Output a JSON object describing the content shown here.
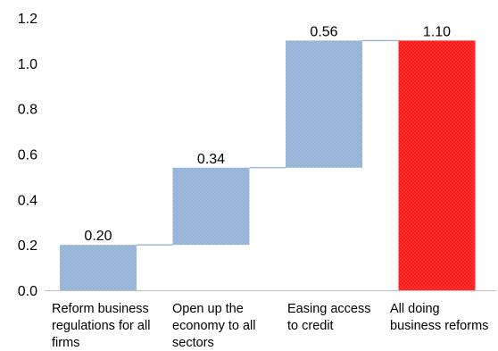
{
  "chart_data": {
    "type": "bar",
    "subtype": "waterfall",
    "title": "",
    "xlabel": "",
    "ylabel": "",
    "ylim": [
      0,
      1.2
    ],
    "yticks": [
      "0.0",
      "0.2",
      "0.4",
      "0.6",
      "0.8",
      "1.0",
      "1.2"
    ],
    "grid": false,
    "legend": "none",
    "categories": [
      [
        "Reform business",
        "regulations for all",
        "firms"
      ],
      [
        "Open up the",
        "economy to all",
        "sectors"
      ],
      [
        "Easing access",
        "to credit"
      ],
      [
        "All doing",
        "business reforms"
      ]
    ],
    "steps": [
      {
        "base": 0.0,
        "value": 0.2,
        "label": "0.20",
        "color": "#95b3d7",
        "kind": "increment"
      },
      {
        "base": 0.2,
        "value": 0.34,
        "label": "0.34",
        "color": "#95b3d7",
        "kind": "increment"
      },
      {
        "base": 0.54,
        "value": 0.56,
        "label": "0.56",
        "color": "#95b3d7",
        "kind": "increment"
      },
      {
        "base": 0.0,
        "value": 1.1,
        "label": "1.10",
        "color": "#ff2020",
        "kind": "total"
      }
    ],
    "connector_color": "#95b3d7",
    "axis_color": "#bfbfbf"
  }
}
